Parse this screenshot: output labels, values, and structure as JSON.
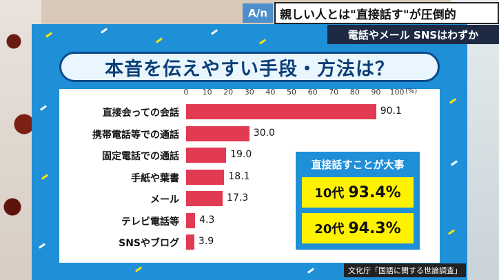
{
  "broadcast": {
    "logo": "A/n",
    "headline": "親しい人とは\"直接話す\"が圧倒的",
    "subheadline": "電話やメール SNSはわずか"
  },
  "board": {
    "title": "本音を伝えやすい手段・方法は？",
    "source": "文化庁「国語に関する世論調査」",
    "callout": {
      "heading": "直接話すことが大事",
      "rows": [
        {
          "age": "10代",
          "value": "93.4%"
        },
        {
          "age": "20代",
          "value": "94.3%"
        }
      ]
    }
  },
  "chart_data": {
    "type": "bar",
    "orientation": "horizontal",
    "title": "本音を伝えやすい手段・方法は？",
    "xlabel": "",
    "ylabel": "",
    "unit": "(%)",
    "xlim": [
      0,
      100
    ],
    "ticks": [
      0,
      10,
      20,
      30,
      40,
      50,
      60,
      70,
      80,
      90,
      100
    ],
    "categories": [
      "直接会っての会話",
      "携帯電話等での通話",
      "固定電話での通話",
      "手紙や葉書",
      "メール",
      "テレビ電話等",
      "SNSやブログ"
    ],
    "values": [
      90.1,
      30.0,
      19.0,
      18.1,
      17.3,
      4.3,
      3.9
    ],
    "value_labels": [
      "90.1",
      "30.0",
      "19.0",
      "18.1",
      "17.3",
      "4.3",
      "3.9"
    ],
    "grid": false,
    "bar_color": "#e23a52"
  }
}
